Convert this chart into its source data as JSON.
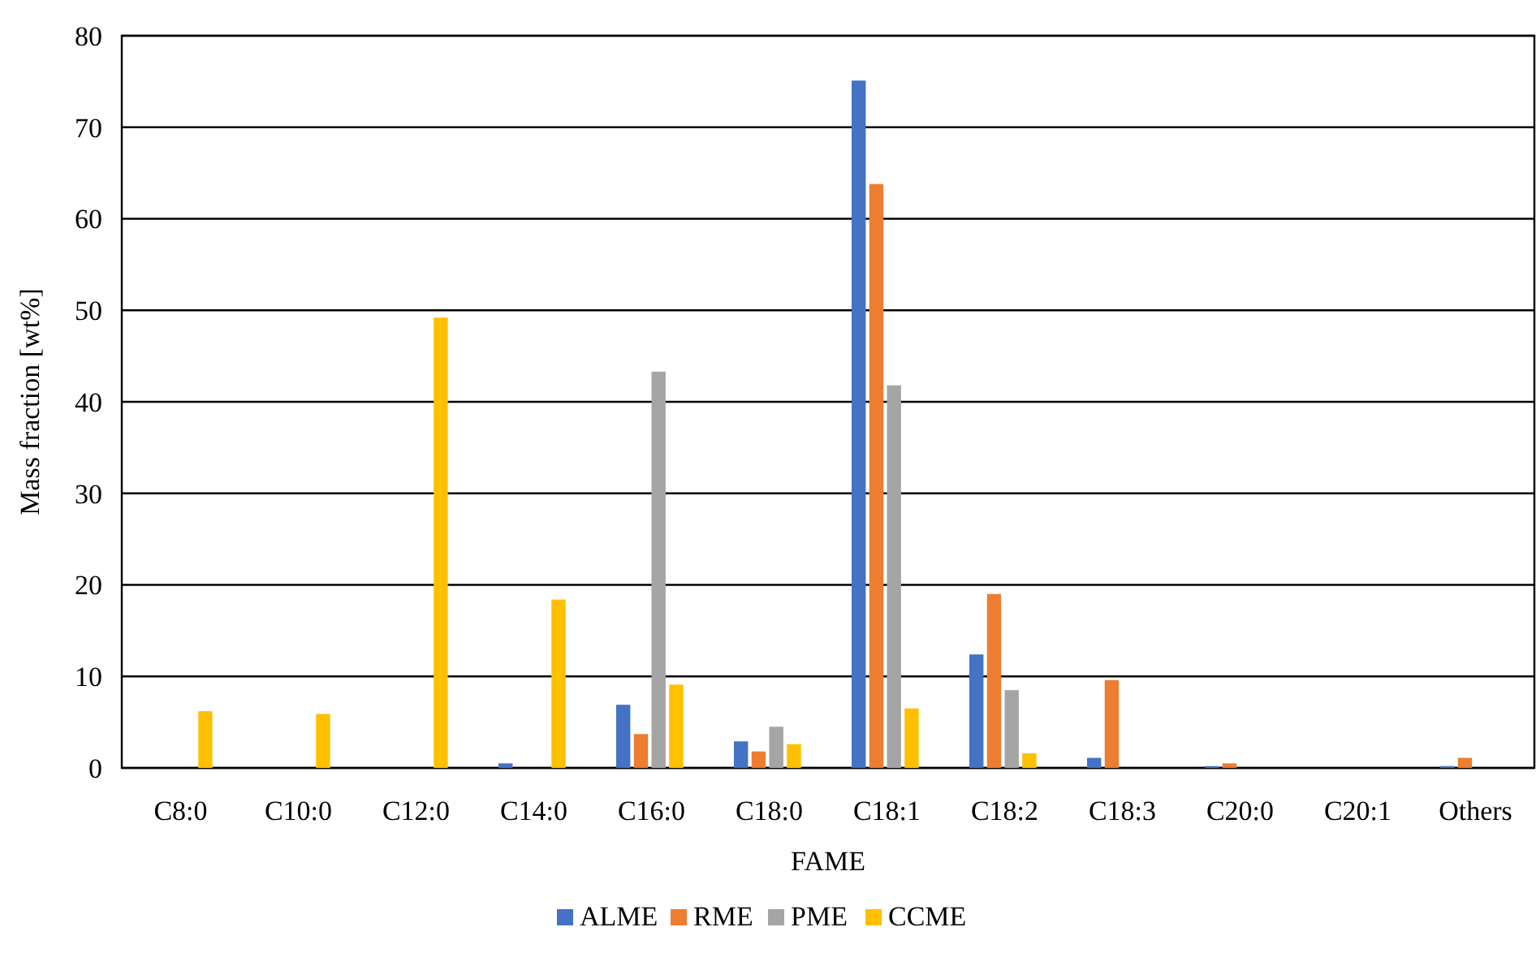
{
  "chart_data": {
    "type": "bar",
    "xlabel": "FAME",
    "ylabel": "Mass fraction [wt%]",
    "categories": [
      "C8:0",
      "C10:0",
      "C12:0",
      "C14:0",
      "C16:0",
      "C18:0",
      "C18:1",
      "C18:2",
      "C18:3",
      "C20:0",
      "C20:1",
      "Others"
    ],
    "series": [
      {
        "name": "ALME",
        "color": "#4472c4",
        "values": [
          null,
          null,
          null,
          0.5,
          6.9,
          2.9,
          75.1,
          12.4,
          1.1,
          0.2,
          null,
          0.2
        ]
      },
      {
        "name": "RME",
        "color": "#ed7d31",
        "values": [
          null,
          null,
          null,
          null,
          3.7,
          1.8,
          63.8,
          19.0,
          9.6,
          0.5,
          null,
          1.1
        ]
      },
      {
        "name": "PME",
        "color": "#a5a5a5",
        "values": [
          null,
          null,
          null,
          null,
          43.3,
          4.5,
          41.8,
          8.5,
          null,
          null,
          null,
          null
        ]
      },
      {
        "name": "CCME",
        "color": "#ffc000",
        "values": [
          6.2,
          5.9,
          49.2,
          18.4,
          9.1,
          2.6,
          6.5,
          1.6,
          null,
          null,
          null,
          null
        ]
      }
    ],
    "ylim": [
      0,
      80
    ],
    "yticks": [
      0,
      10,
      20,
      30,
      40,
      50,
      60,
      70,
      80
    ],
    "grid": "y",
    "legend": "bottom"
  }
}
